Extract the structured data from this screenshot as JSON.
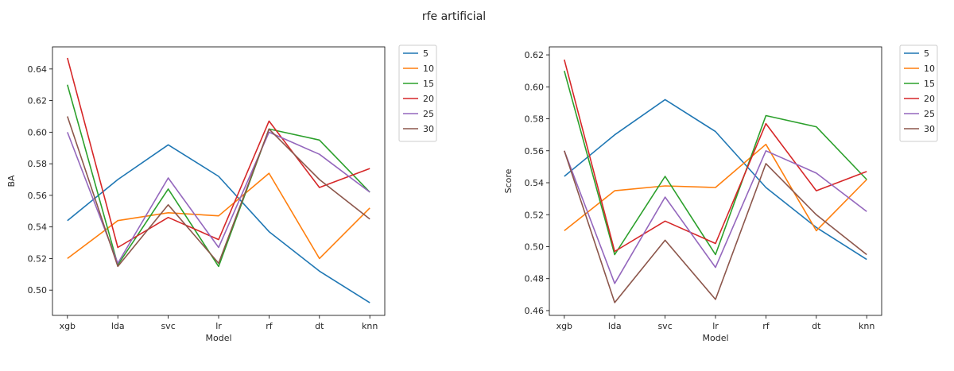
{
  "figure": {
    "title": "rfe artificial"
  },
  "chart_data": [
    {
      "type": "line",
      "xlabel": "Model",
      "ylabel": "BA",
      "categories": [
        "xgb",
        "lda",
        "svc",
        "lr",
        "rf",
        "dt",
        "knn"
      ],
      "ylim": [
        0.484,
        0.654
      ],
      "yticks": [
        0.5,
        0.52,
        0.54,
        0.56,
        0.58,
        0.6,
        0.62,
        0.64
      ],
      "ytick_labels": [
        "0.50",
        "0.52",
        "0.54",
        "0.56",
        "0.58",
        "0.60",
        "0.62",
        "0.64"
      ],
      "grid": false,
      "legend": "outside-right",
      "series": [
        {
          "name": "5",
          "color": "#1f77b4",
          "values": [
            0.544,
            0.57,
            0.592,
            0.572,
            0.537,
            0.512,
            0.492
          ]
        },
        {
          "name": "10",
          "color": "#ff7f0e",
          "values": [
            0.52,
            0.544,
            0.549,
            0.547,
            0.574,
            0.52,
            0.552
          ]
        },
        {
          "name": "15",
          "color": "#2ca02c",
          "values": [
            0.63,
            0.516,
            0.564,
            0.515,
            0.602,
            0.595,
            0.562
          ]
        },
        {
          "name": "20",
          "color": "#d62728",
          "values": [
            0.647,
            0.527,
            0.546,
            0.532,
            0.607,
            0.565,
            0.577
          ]
        },
        {
          "name": "25",
          "color": "#9467bd",
          "values": [
            0.6,
            0.517,
            0.571,
            0.527,
            0.6,
            0.586,
            0.562
          ]
        },
        {
          "name": "30",
          "color": "#8c564b",
          "values": [
            0.61,
            0.515,
            0.554,
            0.517,
            0.602,
            0.57,
            0.545
          ]
        }
      ]
    },
    {
      "type": "line",
      "xlabel": "Model",
      "ylabel": "Score",
      "categories": [
        "xgb",
        "lda",
        "svc",
        "lr",
        "rf",
        "dt",
        "knn"
      ],
      "ylim": [
        0.457,
        0.625
      ],
      "yticks": [
        0.46,
        0.48,
        0.5,
        0.52,
        0.54,
        0.56,
        0.58,
        0.6,
        0.62
      ],
      "ytick_labels": [
        "0.46",
        "0.48",
        "0.50",
        "0.52",
        "0.54",
        "0.56",
        "0.58",
        "0.60",
        "0.62"
      ],
      "grid": false,
      "legend": "outside-right",
      "series": [
        {
          "name": "5",
          "color": "#1f77b4",
          "values": [
            0.544,
            0.57,
            0.592,
            0.572,
            0.537,
            0.512,
            0.492
          ]
        },
        {
          "name": "10",
          "color": "#ff7f0e",
          "values": [
            0.51,
            0.535,
            0.538,
            0.537,
            0.564,
            0.51,
            0.542
          ]
        },
        {
          "name": "15",
          "color": "#2ca02c",
          "values": [
            0.61,
            0.495,
            0.544,
            0.495,
            0.582,
            0.575,
            0.542
          ]
        },
        {
          "name": "20",
          "color": "#d62728",
          "values": [
            0.617,
            0.497,
            0.516,
            0.502,
            0.577,
            0.535,
            0.547
          ]
        },
        {
          "name": "25",
          "color": "#9467bd",
          "values": [
            0.56,
            0.477,
            0.531,
            0.487,
            0.56,
            0.546,
            0.522
          ]
        },
        {
          "name": "30",
          "color": "#8c564b",
          "values": [
            0.56,
            0.465,
            0.504,
            0.467,
            0.552,
            0.52,
            0.495
          ]
        }
      ]
    }
  ]
}
